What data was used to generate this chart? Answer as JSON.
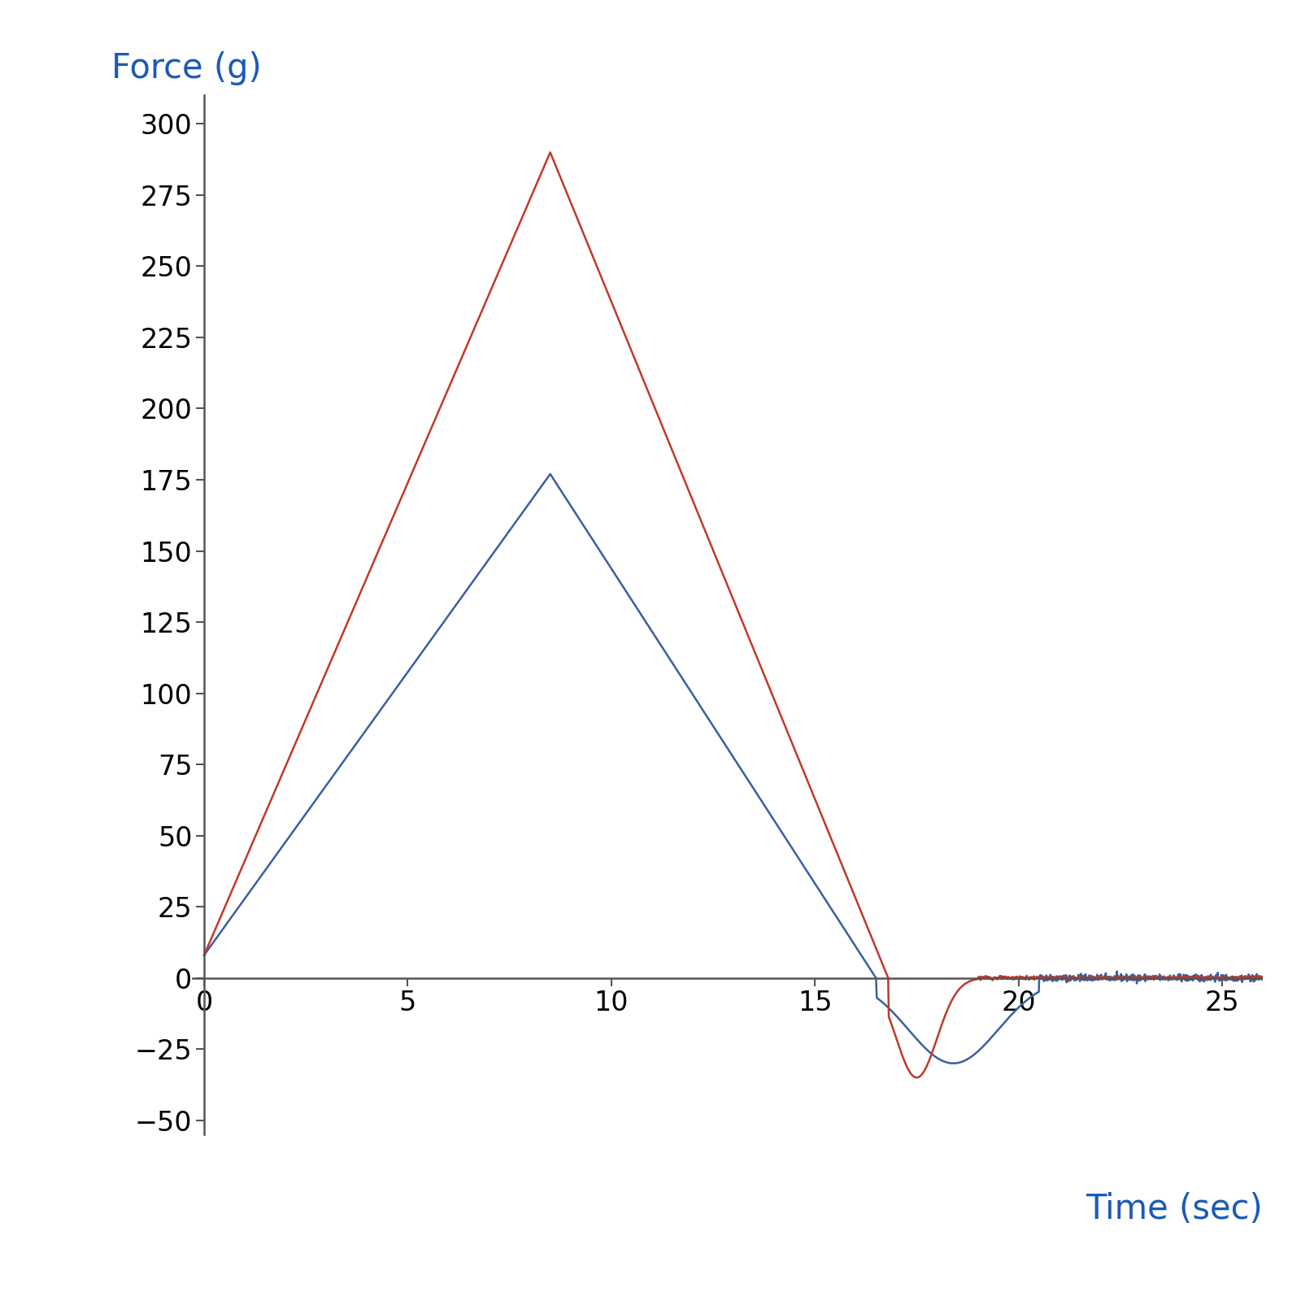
{
  "ylabel": "Force (g)",
  "xlabel": "Time (sec)",
  "label_color": "#1a5bb5",
  "blue_color": "#3a5fa0",
  "red_color": "#c0392b",
  "xlim": [
    -0.3,
    26
  ],
  "ylim": [
    -55,
    310
  ],
  "yticks": [
    -50,
    -25,
    0,
    25,
    50,
    75,
    100,
    125,
    150,
    175,
    200,
    225,
    250,
    275,
    300
  ],
  "xticks": [
    0,
    5,
    10,
    15,
    20,
    25
  ],
  "ylabel_fontsize": 30,
  "xlabel_fontsize": 30,
  "tick_fontsize": 24,
  "linewidth": 1.8,
  "axhline_color": "#555555",
  "spine_color": "#555555"
}
